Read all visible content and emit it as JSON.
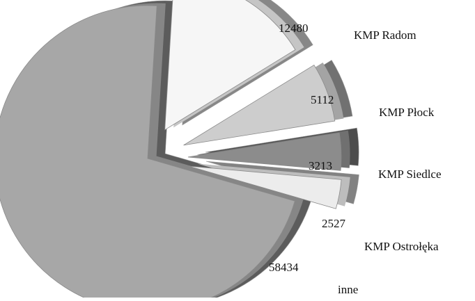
{
  "chart_data": {
    "type": "pie",
    "style": "3d-exploded",
    "slices": [
      {
        "category": "KMP Radom",
        "value": 12480,
        "value_label": "12480",
        "color": "#f6f6f6"
      },
      {
        "category": "KMP Płock",
        "value": 5112,
        "value_label": "5112",
        "color": "#cdcdcd"
      },
      {
        "category": "KMP Siedlce",
        "value": 3213,
        "value_label": "3213",
        "color": "#8c8c8c"
      },
      {
        "category": "KMP Ostrołęka",
        "value": 2527,
        "value_label": "2527",
        "color": "#ececec"
      },
      {
        "category": "inne",
        "value": 58434,
        "value_label": "58434",
        "color": "#a7a7a7"
      }
    ],
    "legend": "none",
    "grid": false
  }
}
